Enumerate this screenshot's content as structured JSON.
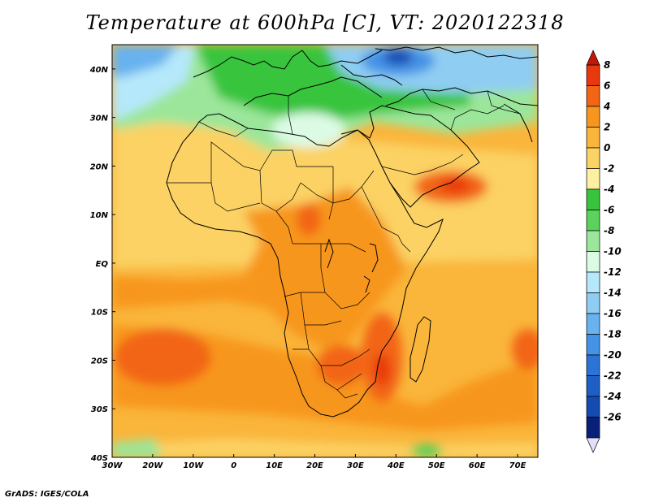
{
  "title": "Temperature at 600hPa [C], VT: 2020122318",
  "credit": "GrADS: IGES/COLA",
  "map": {
    "lon_range": [
      -30,
      75
    ],
    "lat_range": [
      -40,
      45
    ],
    "x_ticks": [
      {
        "lon": -30,
        "label": "30W"
      },
      {
        "lon": -20,
        "label": "20W"
      },
      {
        "lon": -10,
        "label": "10W"
      },
      {
        "lon": 0,
        "label": "0"
      },
      {
        "lon": 10,
        "label": "10E"
      },
      {
        "lon": 20,
        "label": "20E"
      },
      {
        "lon": 30,
        "label": "30E"
      },
      {
        "lon": 40,
        "label": "40E"
      },
      {
        "lon": 50,
        "label": "50E"
      },
      {
        "lon": 60,
        "label": "60E"
      },
      {
        "lon": 70,
        "label": "70E"
      }
    ],
    "y_ticks": [
      {
        "lat": 40,
        "label": "40N"
      },
      {
        "lat": 30,
        "label": "30N"
      },
      {
        "lat": 20,
        "label": "20N"
      },
      {
        "lat": 10,
        "label": "10N"
      },
      {
        "lat": 0,
        "label": "EQ"
      },
      {
        "lat": -10,
        "label": "10S"
      },
      {
        "lat": -20,
        "label": "20S"
      },
      {
        "lat": -30,
        "label": "30S"
      },
      {
        "lat": -40,
        "label": "40S"
      }
    ]
  },
  "colorbar": {
    "levels": [
      {
        "label": "8",
        "color": "#e8380e"
      },
      {
        "label": "6",
        "color": "#f26514"
      },
      {
        "label": "4",
        "color": "#f7961e"
      },
      {
        "label": "2",
        "color": "#fab53b"
      },
      {
        "label": "0",
        "color": "#fbd264"
      },
      {
        "label": "-2",
        "color": "#fdf0a0"
      },
      {
        "label": "-4",
        "color": "#38c43c"
      },
      {
        "label": "-6",
        "color": "#5ad25c"
      },
      {
        "label": "-8",
        "color": "#9be69a"
      },
      {
        "label": "-10",
        "color": "#dbfbe4"
      },
      {
        "label": "-12",
        "color": "#b6e8fb"
      },
      {
        "label": "-14",
        "color": "#8fcdf3"
      },
      {
        "label": "-16",
        "color": "#68b2ef"
      },
      {
        "label": "-18",
        "color": "#4593e6"
      },
      {
        "label": "-20",
        "color": "#2c73d6"
      },
      {
        "label": "-22",
        "color": "#1e5fc6"
      },
      {
        "label": "-24",
        "color": "#144bb0"
      },
      {
        "label": "-26",
        "color": "#0a2078"
      }
    ],
    "top_arrow_color": "#c2180a",
    "bottom_arrow_color": "#e2e0f8"
  }
}
